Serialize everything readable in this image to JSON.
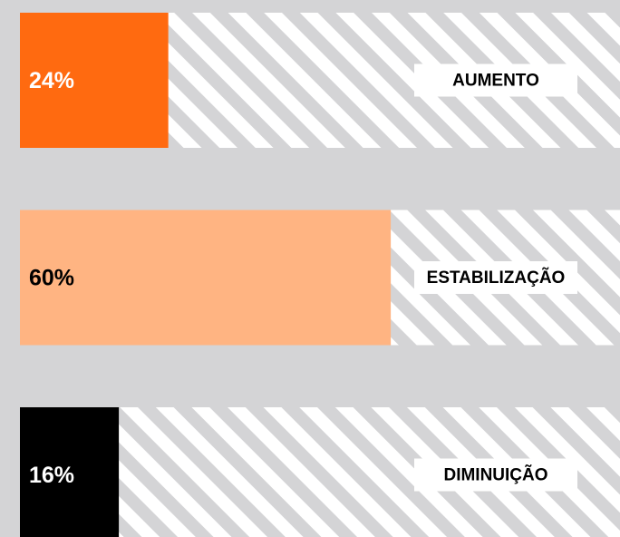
{
  "chart_data": {
    "type": "bar",
    "orientation": "horizontal",
    "categories": [
      "AUMENTO",
      "ESTABILIZAÇÃO",
      "DIMINUIÇÃO"
    ],
    "values": [
      24,
      60,
      16
    ],
    "value_labels": [
      "24%",
      "60%",
      "16%"
    ],
    "colors": [
      "#ff6a10",
      "#ffb482",
      "#000000"
    ],
    "xlim": [
      0,
      100
    ]
  }
}
